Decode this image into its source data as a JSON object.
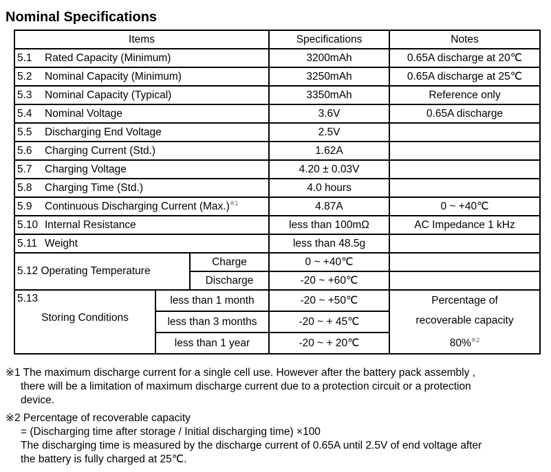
{
  "title": "Nominal Specifications",
  "headers": {
    "items": "Items",
    "specs": "Specifications",
    "notes": "Notes"
  },
  "rows": [
    {
      "num": "5.1",
      "item": "Rated Capacity (Minimum)",
      "spec": "3200mAh",
      "note": "0.65A discharge at 20℃"
    },
    {
      "num": "5.2",
      "item": "Nominal Capacity (Minimum)",
      "spec": "3250mAh",
      "note": "0.65A discharge at 25℃"
    },
    {
      "num": "5.3",
      "item": "Nominal Capacity (Typical)",
      "spec": "3350mAh",
      "note": "Reference only"
    },
    {
      "num": "5.4",
      "item": "Nominal Voltage",
      "spec": "3.6V",
      "note": "0.65A discharge"
    },
    {
      "num": "5.5",
      "item": "Discharging End Voltage",
      "spec": "2.5V",
      "note": ""
    },
    {
      "num": "5.6",
      "item": "Charging Current (Std.)",
      "spec": "1.62A",
      "note": ""
    },
    {
      "num": "5.7",
      "item": "Charging Voltage",
      "spec": "4.20 ± 0.03V",
      "note": ""
    },
    {
      "num": "5.8",
      "item": "Charging Time (Std.)",
      "spec": "4.0 hours",
      "note": ""
    },
    {
      "num": "5.9",
      "item": "Continuous Discharging Current (Max.)",
      "sup": "※1",
      "spec": "4.87A",
      "note": "0 ~ +40℃"
    },
    {
      "num": "5.10",
      "item": "Internal Resistance",
      "spec": "less than 100mΩ",
      "note": "AC Impedance 1 kHz"
    },
    {
      "num": "5.11",
      "item": "Weight",
      "spec": "less than 48.5g",
      "note": ""
    }
  ],
  "operating": {
    "label": "5.12 Operating Temperature",
    "sub": [
      {
        "label": "Charge",
        "spec": "0 ~ +40℃"
      },
      {
        "label": "Discharge",
        "spec": "-20 ~ +60℃"
      }
    ]
  },
  "storing": {
    "num": "5.13",
    "label": "Storing Conditions",
    "sub": [
      {
        "label": "less than 1 month",
        "spec": "-20 ~ +50℃"
      },
      {
        "label": "less than 3 months",
        "spec": "-20 ~ + 45℃"
      },
      {
        "label": "less than 1 year",
        "spec": "-20 ~ + 20℃"
      }
    ],
    "note1": "Percentage of",
    "note2": "recoverable capacity",
    "note3": "80%",
    "note_sup": "※2"
  },
  "footnotes": {
    "n1_line1": "※1 The maximum discharge current for a single cell use. However after the battery pack assembly ,",
    "n1_line2": "there will be a limitation of maximum discharge current due to a protection circuit or a protection",
    "n1_line3": "device.",
    "n2_line1": "※2 Percentage of recoverable capacity",
    "n2_line2": "= (Discharging time after storage / Initial discharging time) ×100",
    "n2_line3": "The discharging time is measured by the discharge current of 0.65A until 2.5V of end voltage after",
    "n2_line4": "the battery is fully charged at 25℃."
  }
}
